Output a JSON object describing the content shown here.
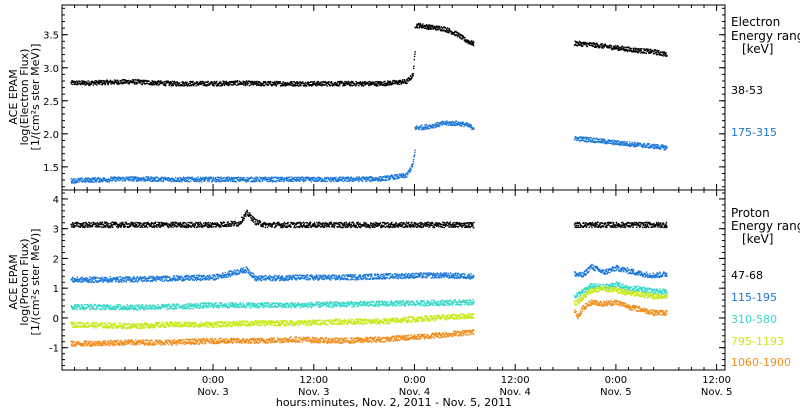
{
  "chart_data": [
    {
      "type": "scatter",
      "panel": "electron",
      "ylabel_lines": [
        "ACE EPAM",
        "log(Electron Flux)",
        "[1/(cm²s ster MeV)]"
      ],
      "ylim": [
        1.15,
        3.95
      ],
      "yticks": [
        1.5,
        2.0,
        2.5,
        3.0,
        3.5
      ],
      "ytick_labels": [
        "1.5",
        "2.0",
        "2.5",
        "3.0",
        "3.5"
      ],
      "legend_title": [
        "Electron",
        "Energy range",
        "[keV]"
      ],
      "series": [
        {
          "name": "38-53",
          "color": "#000000",
          "segments": [
            {
              "x": [
                -34,
                -30,
                -20,
                -10,
                0,
                6,
                10,
                20,
                30,
                40,
                46,
                47.5,
                48
              ],
              "y": [
                2.78,
                2.78,
                2.8,
                2.77,
                2.77,
                2.78,
                2.77,
                2.77,
                2.77,
                2.77,
                2.8,
                2.9,
                3.25
              ]
            },
            {
              "x": [
                48,
                49,
                52,
                55,
                58,
                60,
                62
              ],
              "y": [
                3.65,
                3.65,
                3.62,
                3.6,
                3.52,
                3.43,
                3.37
              ]
            },
            {
              "x": [
                86,
                90,
                95,
                100,
                105,
                108
              ],
              "y": [
                3.38,
                3.36,
                3.32,
                3.28,
                3.25,
                3.21
              ]
            }
          ]
        },
        {
          "name": "175-315",
          "color": "#1c78d8",
          "segments": [
            {
              "x": [
                -34,
                -30,
                -20,
                -10,
                0,
                10,
                20,
                30,
                40,
                46,
                47.5,
                48
              ],
              "y": [
                1.3,
                1.31,
                1.33,
                1.32,
                1.32,
                1.32,
                1.32,
                1.32,
                1.33,
                1.38,
                1.55,
                1.75
              ]
            },
            {
              "x": [
                48,
                50,
                52,
                55,
                58,
                60,
                62
              ],
              "y": [
                2.1,
                2.11,
                2.13,
                2.17,
                2.17,
                2.15,
                2.1
              ]
            },
            {
              "x": [
                86,
                90,
                95,
                100,
                105,
                108
              ],
              "y": [
                1.94,
                1.92,
                1.88,
                1.85,
                1.82,
                1.8
              ]
            }
          ]
        }
      ]
    },
    {
      "type": "scatter",
      "panel": "proton",
      "ylabel_lines": [
        "ACE EPAM",
        "log(Proton Flux)",
        "[1/(cm²s ster MeV)]"
      ],
      "ylim": [
        -1.75,
        4.3
      ],
      "yticks": [
        -1,
        0,
        1,
        2,
        3,
        4
      ],
      "ytick_labels": [
        "-1",
        "0",
        "1",
        "2",
        "3",
        "4"
      ],
      "legend_title": [
        "Proton",
        "Energy range",
        "[keV]"
      ],
      "series": [
        {
          "name": "47-68",
          "color": "#000000",
          "segments": [
            {
              "x": [
                -34,
                -20,
                -10,
                0,
                6,
                8,
                10,
                12,
                20,
                30,
                40,
                50,
                62
              ],
              "y": [
                3.15,
                3.15,
                3.15,
                3.15,
                3.2,
                3.55,
                3.25,
                3.15,
                3.15,
                3.15,
                3.15,
                3.15,
                3.15
              ]
            },
            {
              "x": [
                86,
                95,
                108
              ],
              "y": [
                3.15,
                3.15,
                3.15
              ]
            }
          ]
        },
        {
          "name": "115-195",
          "color": "#1c78d8",
          "segments": [
            {
              "x": [
                -34,
                -20,
                -10,
                0,
                8,
                10,
                20,
                30,
                40,
                50,
                55,
                62
              ],
              "y": [
                1.3,
                1.32,
                1.35,
                1.38,
                1.65,
                1.35,
                1.38,
                1.38,
                1.42,
                1.45,
                1.45,
                1.42
              ]
            },
            {
              "x": [
                86,
                88,
                90,
                93,
                96,
                99,
                102,
                105,
                108
              ],
              "y": [
                1.5,
                1.45,
                1.75,
                1.55,
                1.7,
                1.6,
                1.5,
                1.45,
                1.5
              ]
            }
          ]
        },
        {
          "name": "310-580",
          "color": "#36d8c8",
          "segments": [
            {
              "x": [
                -34,
                -20,
                -10,
                0,
                10,
                20,
                30,
                40,
                50,
                62
              ],
              "y": [
                0.4,
                0.38,
                0.4,
                0.45,
                0.45,
                0.45,
                0.48,
                0.5,
                0.52,
                0.55
              ]
            },
            {
              "x": [
                86,
                88,
                90,
                93,
                96,
                99,
                102,
                105,
                108
              ],
              "y": [
                0.75,
                0.9,
                1.1,
                1.05,
                1.15,
                1.0,
                1.0,
                0.9,
                0.9
              ]
            }
          ]
        },
        {
          "name": "795-1193",
          "color": "#c8e818",
          "segments": [
            {
              "x": [
                -34,
                -20,
                -10,
                0,
                10,
                20,
                30,
                40,
                50,
                62
              ],
              "y": [
                -0.2,
                -0.25,
                -0.2,
                -0.2,
                -0.15,
                -0.15,
                -0.1,
                -0.1,
                0.0,
                0.1
              ]
            },
            {
              "x": [
                86,
                88,
                90,
                93,
                96,
                99,
                102,
                105,
                108
              ],
              "y": [
                0.5,
                0.7,
                0.95,
                1.0,
                0.95,
                0.85,
                0.8,
                0.75,
                0.75
              ]
            }
          ]
        },
        {
          "name": "1060-1900",
          "color": "#f08c1a",
          "segments": [
            {
              "x": [
                -34,
                -20,
                -10,
                0,
                10,
                20,
                30,
                40,
                50,
                62
              ],
              "y": [
                -0.85,
                -0.8,
                -0.8,
                -0.75,
                -0.75,
                -0.7,
                -0.75,
                -0.7,
                -0.6,
                -0.45
              ]
            },
            {
              "x": [
                86,
                87,
                88,
                90,
                93,
                96,
                99,
                102,
                105,
                108
              ],
              "y": [
                0.3,
                0.05,
                0.35,
                0.55,
                0.5,
                0.55,
                0.4,
                0.3,
                0.2,
                0.2
              ]
            }
          ]
        }
      ]
    }
  ],
  "x_axis": {
    "xlim": [
      -36,
      122
    ],
    "tick_positions": [
      0,
      24,
      48,
      72,
      96,
      120
    ],
    "tick_labels": [
      [
        "0:00",
        "Nov. 3"
      ],
      [
        "12:00",
        "Nov. 3"
      ],
      [
        "0:00",
        "Nov. 4"
      ],
      [
        "12:00",
        "Nov. 4"
      ],
      [
        "0:00",
        "Nov. 5"
      ],
      [
        "12:00",
        "Nov. 5"
      ]
    ],
    "title": "hours:minutes, Nov. 2, 2011 - Nov. 5, 2011"
  }
}
